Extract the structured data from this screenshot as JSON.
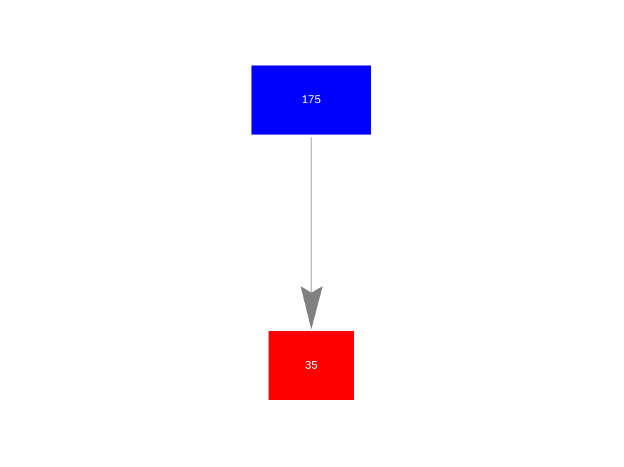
{
  "nodes": [
    {
      "id": "a",
      "label": "175",
      "color": "#0000ff"
    },
    {
      "id": "b",
      "label": "35",
      "color": "#ff0000"
    }
  ],
  "edges": [
    {
      "from": "a",
      "to": "b",
      "color": "#808080",
      "directed": true
    }
  ]
}
